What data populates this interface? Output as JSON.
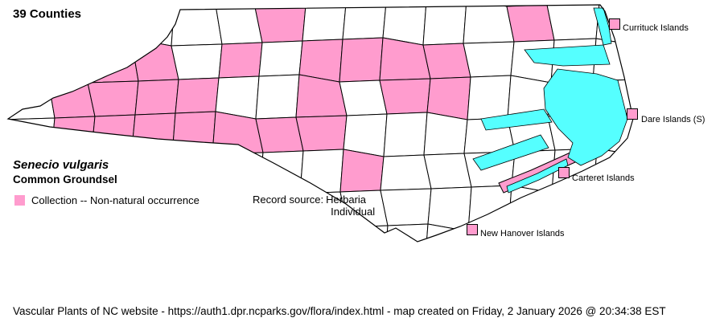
{
  "title": "39 Counties",
  "species": {
    "scientific_name": "Senecio vulgaris",
    "common_name": "Common Groundsel"
  },
  "legend": {
    "label": "Collection -- Non-natural occurrence",
    "swatch_color": "#FF9CCE"
  },
  "record_source": {
    "label": "Record source:",
    "values": [
      "Herbaria",
      "Individual"
    ]
  },
  "island_labels": [
    {
      "name": "Currituck Islands"
    },
    {
      "name": "Dare Islands (S)"
    },
    {
      "name": "Carteret Islands"
    },
    {
      "name": "New Hanover Islands"
    }
  ],
  "footer": "Vascular Plants of NC website - https://auth1.dpr.ncparks.gov/flora/index.html - map created on Friday, 2 January 2026 @ 20:34:38 EST",
  "map": {
    "state": "North Carolina",
    "highlighted_county_count": 39,
    "county_fill_color": "#FF9CCE",
    "county_empty_color": "#FFFFFF",
    "water_color": "#55FFFF",
    "border_color": "#000000",
    "pink_cells": [
      [
        6,
        0
      ],
      [
        12,
        0
      ],
      [
        2,
        1
      ],
      [
        3,
        1
      ],
      [
        5,
        1
      ],
      [
        7,
        1
      ],
      [
        8,
        1
      ],
      [
        9,
        1
      ],
      [
        10,
        1
      ],
      [
        1,
        2
      ],
      [
        2,
        2
      ],
      [
        3,
        2
      ],
      [
        4,
        2
      ],
      [
        7,
        2
      ],
      [
        9,
        2
      ],
      [
        10,
        2
      ],
      [
        1,
        3
      ],
      [
        2,
        3
      ],
      [
        3,
        3
      ],
      [
        4,
        3
      ],
      [
        5,
        3
      ],
      [
        6,
        3
      ],
      [
        7,
        3
      ],
      [
        8,
        4
      ]
    ]
  }
}
